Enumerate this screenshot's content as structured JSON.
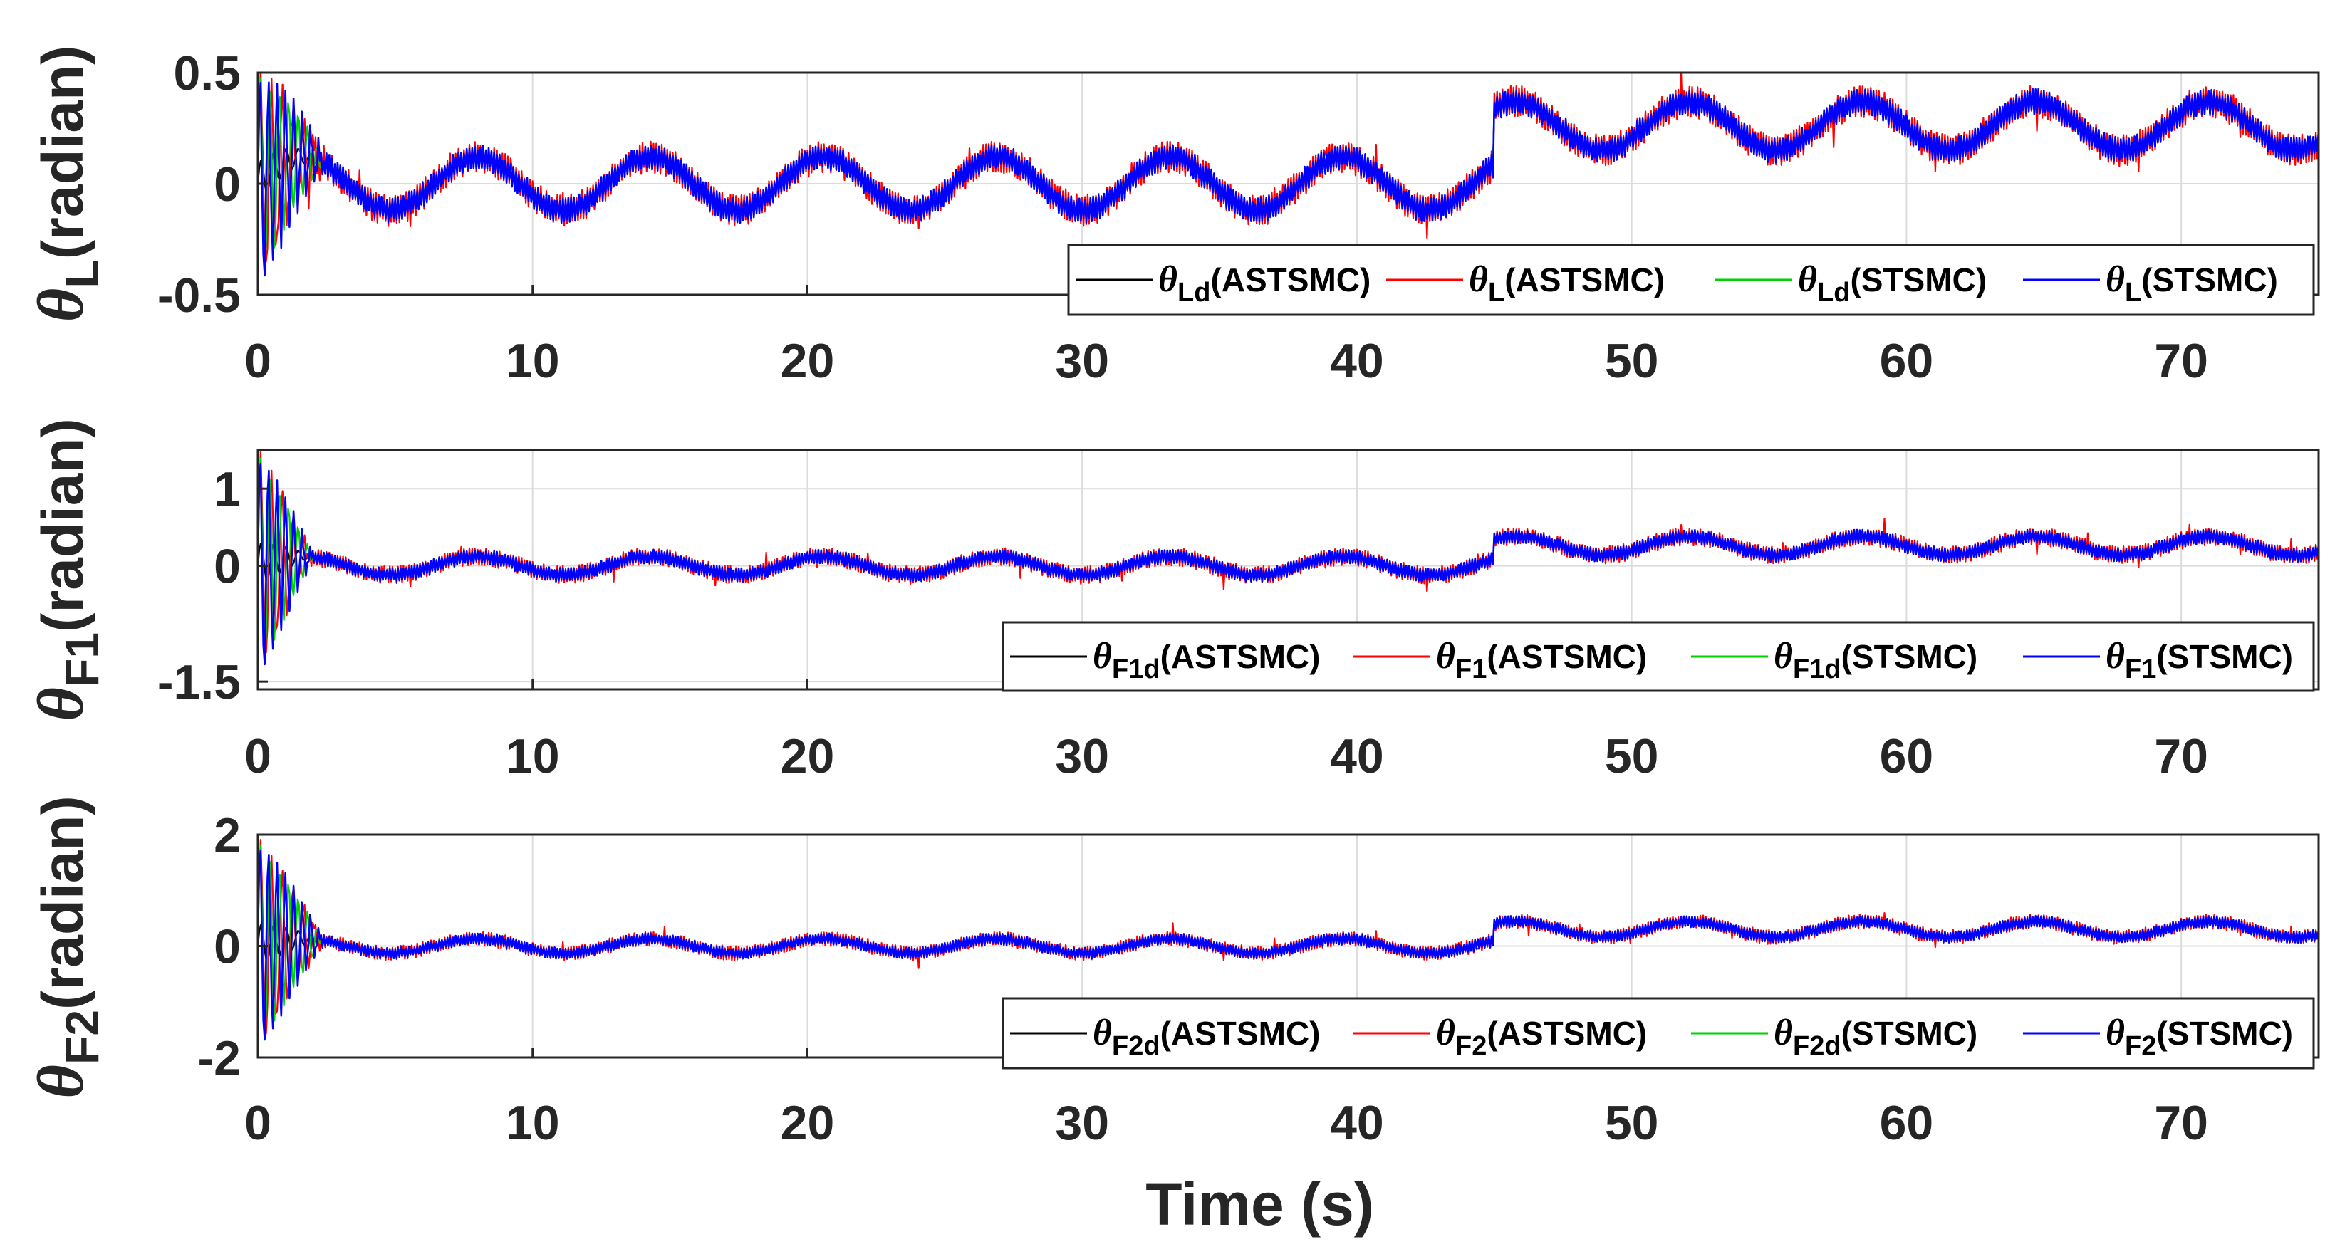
{
  "chart_data": [
    {
      "type": "line",
      "ylabel": {
        "greek": "θ",
        "sub": "L",
        "text": "(radian)"
      },
      "xlabel": "",
      "xlim": [
        0,
        75
      ],
      "ylim": [
        -0.5,
        0.5
      ],
      "xticks": [
        0,
        10,
        20,
        30,
        40,
        50,
        60,
        70
      ],
      "xtick_labels": [
        "0",
        "10",
        "20",
        "30",
        "40",
        "50",
        "60",
        "70"
      ],
      "yticks": [
        -0.5,
        0,
        0.5
      ],
      "ytick_labels": [
        "-0.5",
        "0",
        "0.5"
      ],
      "grid": true,
      "legend_position": "bottom-right",
      "signal": {
        "amplitude": 0.12,
        "period": 6.3,
        "step_time": 45,
        "offset_after_step": 0.26,
        "amplitude_after_step": 0.11,
        "chatter": 0.05,
        "transient_until": 2.5
      },
      "series": [
        {
          "name": "θLd(ASTSMC)",
          "greek": "θ",
          "sub": "Ld",
          "tail": "(ASTSMC)",
          "color": "#000000"
        },
        {
          "name": "θL(ASTSMC)",
          "greek": "θ",
          "sub": "L",
          "tail": "(ASTSMC)",
          "color": "#ff0000"
        },
        {
          "name": "θLd(STSMC)",
          "greek": "θ",
          "sub": "Ld",
          "tail": "(STSMC)",
          "color": "#00d000"
        },
        {
          "name": "θL(STSMC)",
          "greek": "θ",
          "sub": "L",
          "tail": "(STSMC)",
          "color": "#0000ff"
        }
      ]
    },
    {
      "type": "line",
      "ylabel": {
        "greek": "θ",
        "sub": "F1",
        "text": "(radian)"
      },
      "xlabel": "",
      "xlim": [
        0,
        75
      ],
      "ylim": [
        -1.6,
        1.5
      ],
      "xticks": [
        0,
        10,
        20,
        30,
        40,
        50,
        60,
        70
      ],
      "xtick_labels": [
        "0",
        "10",
        "20",
        "30",
        "40",
        "50",
        "60",
        "70"
      ],
      "yticks": [
        -1.5,
        0,
        1
      ],
      "ytick_labels": [
        "-1.5",
        "0",
        "1"
      ],
      "grid": true,
      "legend_position": "bottom-right",
      "signal": {
        "amplitude": 0.12,
        "period": 6.3,
        "step_time": 45,
        "offset_after_step": 0.26,
        "amplitude_after_step": 0.12,
        "chatter": 0.08,
        "transient_until": 2.0
      },
      "series": [
        {
          "name": "θF1d(ASTSMC)",
          "greek": "θ",
          "sub": "F1d",
          "tail": "(ASTSMC)",
          "color": "#000000"
        },
        {
          "name": "θF1(ASTSMC)",
          "greek": "θ",
          "sub": "F1",
          "tail": "(ASTSMC)",
          "color": "#ff0000"
        },
        {
          "name": "θF1d(STSMC)",
          "greek": "θ",
          "sub": "F1d",
          "tail": "(STSMC)",
          "color": "#00d000"
        },
        {
          "name": "θF1(STSMC)",
          "greek": "θ",
          "sub": "F1",
          "tail": "(STSMC)",
          "color": "#0000ff"
        }
      ]
    },
    {
      "type": "line",
      "ylabel": {
        "greek": "θ",
        "sub": "F2",
        "text": "(radian)"
      },
      "xlabel": "Time (s)",
      "xlim": [
        0,
        75
      ],
      "ylim": [
        -2.0,
        2.0
      ],
      "xticks": [
        0,
        10,
        20,
        30,
        40,
        50,
        60,
        70
      ],
      "xtick_labels": [
        "0",
        "10",
        "20",
        "30",
        "40",
        "50",
        "60",
        "70"
      ],
      "yticks": [
        -2,
        0,
        2
      ],
      "ytick_labels": [
        "-2",
        "0",
        "2"
      ],
      "grid": true,
      "legend_position": "bottom-right",
      "signal": {
        "amplitude": 0.13,
        "period": 6.3,
        "step_time": 45,
        "offset_after_step": 0.3,
        "amplitude_after_step": 0.14,
        "chatter": 0.09,
        "transient_until": 2.4
      },
      "series": [
        {
          "name": "θF2d(ASTSMC)",
          "greek": "θ",
          "sub": "F2d",
          "tail": "(ASTSMC)",
          "color": "#000000"
        },
        {
          "name": "θF2(ASTSMC)",
          "greek": "θ",
          "sub": "F2",
          "tail": "(ASTSMC)",
          "color": "#ff0000"
        },
        {
          "name": "θF2d(STSMC)",
          "greek": "θ",
          "sub": "F2d",
          "tail": "(STSMC)",
          "color": "#00d000"
        },
        {
          "name": "θF2(STSMC)",
          "greek": "θ",
          "sub": "F2",
          "tail": "(STSMC)",
          "color": "#0000ff"
        }
      ]
    }
  ]
}
